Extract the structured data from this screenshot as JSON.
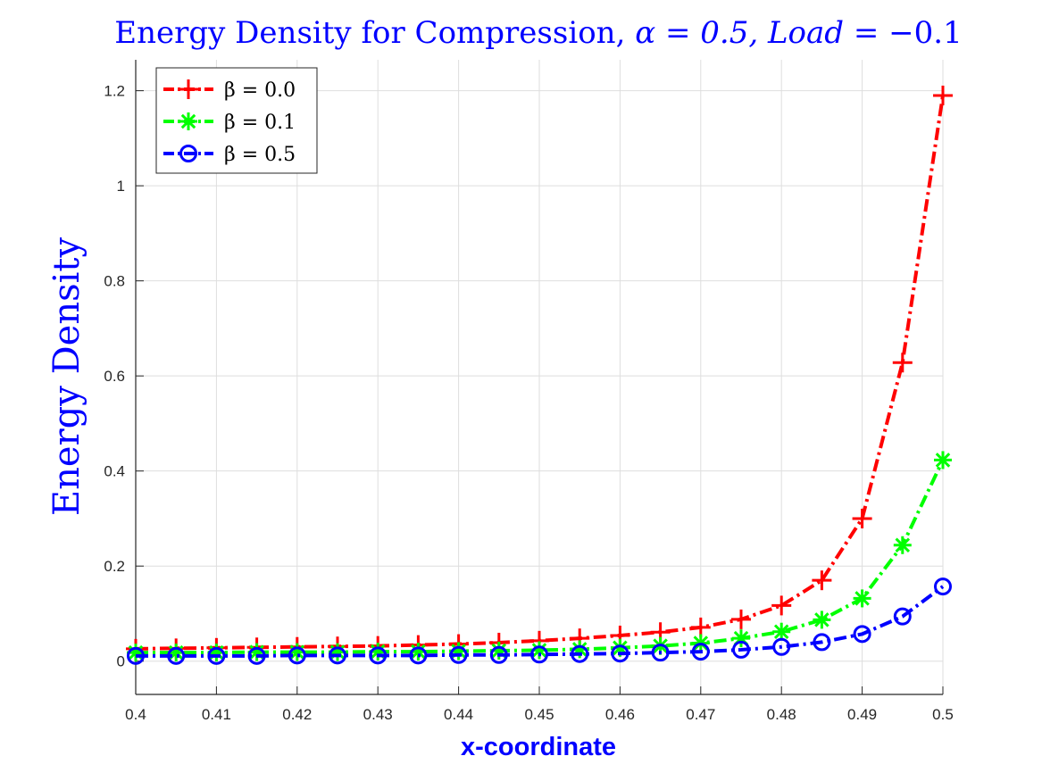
{
  "chart_data": {
    "type": "line",
    "title": "Energy Density for Compression, α = 0.5, Load = −0.1",
    "title_parts": {
      "text": "Energy Density for Compression, ",
      "alpha": "α = 0.5, ",
      "load_word": "Load",
      "load_value": " = −0.1"
    },
    "xlabel": "x-coordinate",
    "ylabel": "Energy Density",
    "xlim": [
      0.4,
      0.5
    ],
    "ylim": [
      -0.07,
      1.265
    ],
    "x_ticks": [
      "0.4",
      "0.41",
      "0.42",
      "0.43",
      "0.44",
      "0.45",
      "0.46",
      "0.47",
      "0.48",
      "0.49",
      "0.5"
    ],
    "y_ticks": [
      "0",
      "0.2",
      "0.4",
      "0.6",
      "0.8",
      "1",
      "1.2"
    ],
    "grid": true,
    "legend_position": "top-left",
    "x": [
      0.4,
      0.405,
      0.41,
      0.415,
      0.42,
      0.425,
      0.43,
      0.435,
      0.44,
      0.445,
      0.45,
      0.455,
      0.46,
      0.465,
      0.47,
      0.475,
      0.48,
      0.485,
      0.49,
      0.495,
      0.5
    ],
    "series": [
      {
        "name": "β = 0.0",
        "color": "#ff0000",
        "marker": "plus",
        "values": [
          0.026,
          0.027,
          0.028,
          0.029,
          0.03,
          0.031,
          0.032,
          0.034,
          0.036,
          0.039,
          0.043,
          0.048,
          0.054,
          0.061,
          0.071,
          0.088,
          0.117,
          0.17,
          0.3,
          0.628,
          1.19
        ]
      },
      {
        "name": "β = 0.1",
        "color": "#00ff00",
        "marker": "asterisk",
        "values": [
          0.018,
          0.018,
          0.018,
          0.019,
          0.019,
          0.019,
          0.02,
          0.02,
          0.021,
          0.022,
          0.023,
          0.025,
          0.028,
          0.032,
          0.038,
          0.048,
          0.062,
          0.087,
          0.132,
          0.244,
          0.423
        ]
      },
      {
        "name": "β = 0.5",
        "color": "#0000ff",
        "marker": "circle",
        "values": [
          0.011,
          0.011,
          0.011,
          0.011,
          0.012,
          0.012,
          0.012,
          0.012,
          0.013,
          0.013,
          0.014,
          0.015,
          0.016,
          0.018,
          0.02,
          0.024,
          0.03,
          0.04,
          0.057,
          0.094,
          0.157
        ]
      }
    ]
  }
}
